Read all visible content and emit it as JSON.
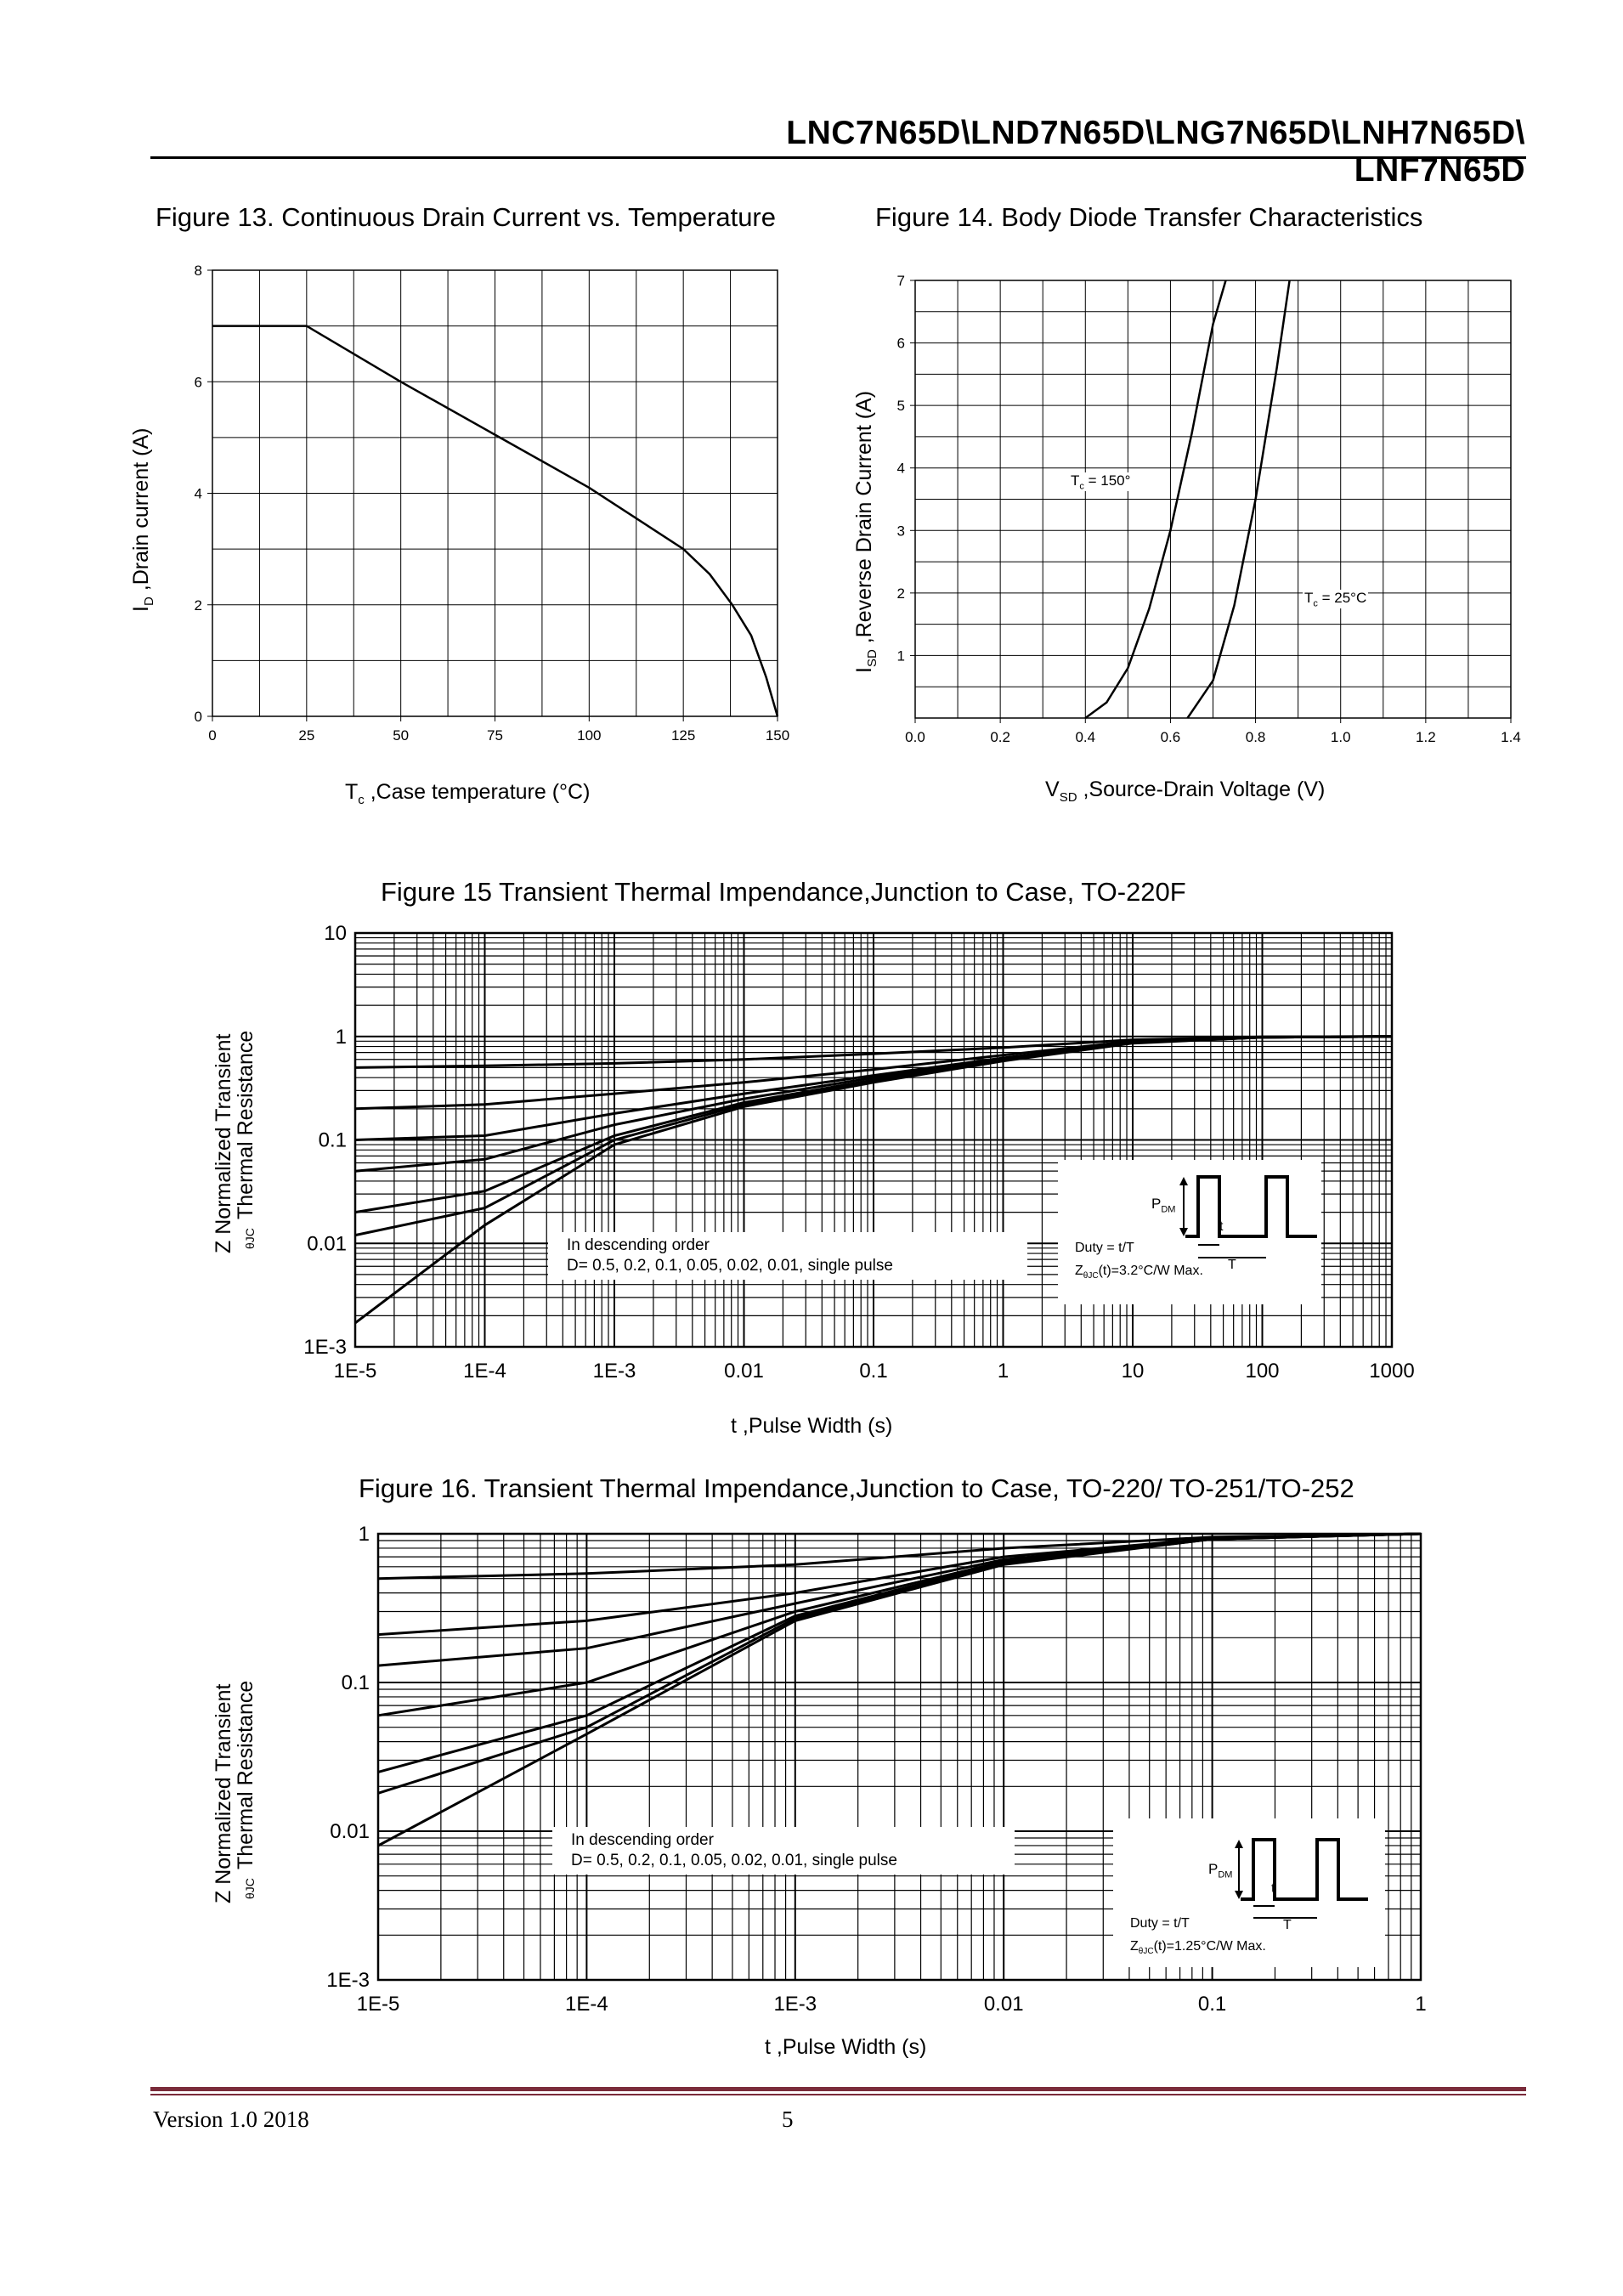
{
  "header": {
    "title": "LNC7N65D\\LND7N65D\\LNG7N65D\\LNH7N65D\\ LNF7N65D"
  },
  "footer": {
    "version": "Version 1.0    2018",
    "page": "5"
  },
  "figures": {
    "fig13": {
      "title": "Figure 13. Continuous Drain Current vs. Temperature",
      "ylabel_main": "I",
      "ylabel_sub": "D",
      "ylabel_rest": " ,Drain current (A)",
      "xlabel_main": "T",
      "xlabel_sub": "c",
      "xlabel_rest": " ,Case temperature (°C)"
    },
    "fig14": {
      "title": "Figure 14. Body Diode Transfer Characteristics",
      "ylabel_main": "I",
      "ylabel_sub": "SD",
      "ylabel_rest": " ,Reverse Drain Current  (A)",
      "xlabel_main": "V",
      "xlabel_sub": "SD",
      "xlabel_rest": " ,Source-Drain Voltage (V)",
      "ann_150_main": "T",
      "ann_150_sub": "c",
      "ann_150_rest": " = 150°",
      "ann_25_main": "T",
      "ann_25_sub": "c",
      "ann_25_rest": " = 25°C"
    },
    "fig15": {
      "title": "Figure 15 Transient Thermal Impendance,Junction to Case, TO-220F",
      "ylabel_line1": "Z    Normalized Transient",
      "ylabel_sub": "θJC",
      "ylabel_line2": "Thermal Resistance",
      "xlabel": "t ,Pulse Width (s)",
      "legend_line1": "In descending order",
      "legend_line2": "D= 0.5, 0.2, 0.1, 0.05, 0.02, 0.01, single pulse",
      "inset_pdm_main": "P",
      "inset_pdm_sub": "DM",
      "inset_t": "t",
      "inset_T": "T",
      "inset_duty": "Duty = t/T",
      "inset_z_main": "Z",
      "inset_z_sub": "θJC",
      "inset_z_rest": "(t)=3.2°C/W Max."
    },
    "fig16": {
      "title": "Figure 16. Transient Thermal Impendance,Junction to Case, TO-220/ TO-251/TO-252",
      "ylabel_line1": "Z    Normalized Transient",
      "ylabel_sub": "θJC",
      "ylabel_line2": "Thermal Resistance",
      "xlabel": "t ,Pulse Width (s)",
      "legend_line1": "In descending order",
      "legend_line2": "D= 0.5, 0.2, 0.1, 0.05, 0.02, 0.01, single pulse",
      "inset_pdm_main": "P",
      "inset_pdm_sub": "DM",
      "inset_t": "t",
      "inset_T": "T",
      "inset_duty": "Duty = t/T",
      "inset_z_main": "Z",
      "inset_z_sub": "θJC",
      "inset_z_rest": "(t)=1.25°C/W Max."
    }
  },
  "chart_data": [
    {
      "id": "fig13",
      "type": "line",
      "title": "Figure 13. Continuous Drain Current vs. Temperature",
      "xlabel": "Tc ,Case temperature (°C)",
      "ylabel": "ID ,Drain current (A)",
      "xlim": [
        0,
        150
      ],
      "ylim": [
        0,
        8
      ],
      "grid": true,
      "xticks": [
        0,
        25,
        50,
        75,
        100,
        125,
        150
      ],
      "xtick_labels": [
        "0",
        "25",
        "50",
        "75",
        "100",
        "125",
        "150"
      ],
      "yticks": [
        0,
        2,
        4,
        6,
        8
      ],
      "ytick_labels": [
        "0",
        "2",
        "4",
        "6",
        "8"
      ],
      "series": [
        {
          "name": "ID",
          "x": [
            0,
            25,
            50,
            75,
            100,
            125,
            132,
            138,
            143,
            147,
            150
          ],
          "y": [
            7,
            7,
            6.0,
            5.05,
            4.1,
            3.0,
            2.55,
            2.0,
            1.45,
            0.7,
            0
          ]
        }
      ]
    },
    {
      "id": "fig14",
      "type": "line",
      "title": "Figure 14. Body Diode Transfer Characteristics",
      "xlabel": "VSD ,Source-Drain Voltage (V)",
      "ylabel": "ISD ,Reverse Drain Current (A)",
      "xlim": [
        0,
        1.4
      ],
      "ylim": [
        0,
        7
      ],
      "grid": true,
      "xticks": [
        0,
        0.2,
        0.4,
        0.6,
        0.8,
        1.0,
        1.2,
        1.4
      ],
      "xtick_labels": [
        "0.0",
        "0.2",
        "0.4",
        "0.6",
        "0.8",
        "1.0",
        "1.2",
        "1.4"
      ],
      "yticks": [
        1,
        2,
        3,
        4,
        5,
        6,
        7
      ],
      "ytick_labels": [
        "1",
        "2",
        "3",
        "4",
        "5",
        "6",
        "7"
      ],
      "series": [
        {
          "name": "Tc = 150°",
          "x": [
            0.4,
            0.45,
            0.5,
            0.55,
            0.6,
            0.65,
            0.7,
            0.73
          ],
          "y": [
            0.0,
            0.25,
            0.8,
            1.75,
            3.0,
            4.55,
            6.3,
            7.0
          ]
        },
        {
          "name": "Tc = 25°C",
          "x": [
            0.64,
            0.7,
            0.75,
            0.8,
            0.85,
            0.88
          ],
          "y": [
            0.0,
            0.6,
            1.8,
            3.5,
            5.6,
            7.0
          ]
        }
      ]
    },
    {
      "id": "fig15",
      "type": "line",
      "xscale": "log",
      "yscale": "log",
      "title": "Figure 15 Transient Thermal Impendance,Junction to Case, TO-220F",
      "xlabel": "t ,Pulse Width (s)",
      "ylabel": "ZθJC Normalized Transient Thermal Resistance",
      "xlim": [
        1e-05,
        1000
      ],
      "ylim": [
        0.001,
        10
      ],
      "grid": true,
      "xtick_labels": [
        "1E-5",
        "1E-4",
        "1E-3",
        "0.01",
        "0.1",
        "1",
        "10",
        "100",
        "1000"
      ],
      "ytick_labels": [
        "1E-3",
        "0.01",
        "0.1",
        "1",
        "10"
      ],
      "series": [
        {
          "name": "D=0.5",
          "x": [
            1e-05,
            0.0001,
            0.001,
            0.01,
            0.1,
            1,
            10,
            100,
            1000
          ],
          "y": [
            0.5,
            0.52,
            0.55,
            0.6,
            0.68,
            0.78,
            0.93,
            0.99,
            1.0
          ]
        },
        {
          "name": "D=0.2",
          "x": [
            1e-05,
            0.0001,
            0.001,
            0.01,
            0.1,
            1,
            10,
            100,
            1000
          ],
          "y": [
            0.2,
            0.22,
            0.28,
            0.36,
            0.48,
            0.66,
            0.9,
            0.99,
            1.0
          ]
        },
        {
          "name": "D=0.1",
          "x": [
            1e-05,
            0.0001,
            0.001,
            0.01,
            0.1,
            1,
            10,
            100,
            1000
          ],
          "y": [
            0.1,
            0.11,
            0.18,
            0.28,
            0.42,
            0.62,
            0.88,
            0.98,
            1.0
          ]
        },
        {
          "name": "D=0.05",
          "x": [
            1e-05,
            0.0001,
            0.001,
            0.01,
            0.1,
            1,
            10,
            100,
            1000
          ],
          "y": [
            0.05,
            0.065,
            0.14,
            0.25,
            0.4,
            0.6,
            0.88,
            0.98,
            1.0
          ]
        },
        {
          "name": "D=0.02",
          "x": [
            1e-05,
            0.0001,
            0.001,
            0.01,
            0.1,
            1,
            10,
            100,
            1000
          ],
          "y": [
            0.02,
            0.032,
            0.11,
            0.23,
            0.38,
            0.6,
            0.87,
            0.98,
            1.0
          ]
        },
        {
          "name": "D=0.01",
          "x": [
            1e-05,
            0.0001,
            0.001,
            0.01,
            0.1,
            1,
            10,
            100,
            1000
          ],
          "y": [
            0.012,
            0.022,
            0.1,
            0.22,
            0.37,
            0.59,
            0.87,
            0.98,
            1.0
          ]
        },
        {
          "name": "single pulse",
          "x": [
            1e-05,
            0.0001,
            0.001,
            0.01,
            0.1,
            1,
            10,
            100,
            1000
          ],
          "y": [
            0.0017,
            0.015,
            0.09,
            0.21,
            0.36,
            0.58,
            0.86,
            0.98,
            1.0
          ]
        }
      ]
    },
    {
      "id": "fig16",
      "type": "line",
      "xscale": "log",
      "yscale": "log",
      "title": "Figure 16. Transient Thermal Impendance,Junction to Case, TO-220/ TO-251/TO-252",
      "xlabel": "t ,Pulse Width (s)",
      "ylabel": "ZθJC Normalized Transient Thermal Resistance",
      "xlim": [
        1e-05,
        1
      ],
      "ylim": [
        0.001,
        1
      ],
      "grid": true,
      "xtick_labels": [
        "1E-5",
        "1E-4",
        "1E-3",
        "0.01",
        "0.1",
        "1"
      ],
      "ytick_labels": [
        "1E-3",
        "0.01",
        "0.1",
        "1"
      ],
      "series": [
        {
          "name": "D=0.5",
          "x": [
            1e-05,
            0.0001,
            0.001,
            0.01,
            0.1,
            1
          ],
          "y": [
            0.5,
            0.54,
            0.62,
            0.8,
            0.95,
            1.0
          ]
        },
        {
          "name": "D=0.2",
          "x": [
            1e-05,
            0.0001,
            0.001,
            0.01,
            0.1,
            1
          ],
          "y": [
            0.21,
            0.26,
            0.4,
            0.7,
            0.93,
            1.0
          ]
        },
        {
          "name": "D=0.1",
          "x": [
            1e-05,
            0.0001,
            0.001,
            0.01,
            0.1,
            1
          ],
          "y": [
            0.13,
            0.17,
            0.34,
            0.67,
            0.93,
            1.0
          ]
        },
        {
          "name": "D=0.05",
          "x": [
            1e-05,
            0.0001,
            0.001,
            0.01,
            0.1,
            1
          ],
          "y": [
            0.06,
            0.1,
            0.3,
            0.65,
            0.92,
            1.0
          ]
        },
        {
          "name": "D=0.02",
          "x": [
            1e-05,
            0.0001,
            0.001,
            0.01,
            0.1,
            1
          ],
          "y": [
            0.025,
            0.06,
            0.28,
            0.64,
            0.92,
            1.0
          ]
        },
        {
          "name": "D=0.01",
          "x": [
            1e-05,
            0.0001,
            0.001,
            0.01,
            0.1,
            1
          ],
          "y": [
            0.018,
            0.05,
            0.27,
            0.63,
            0.92,
            1.0
          ]
        },
        {
          "name": "single pulse",
          "x": [
            1e-05,
            0.0001,
            0.001,
            0.01,
            0.1,
            1
          ],
          "y": [
            0.008,
            0.045,
            0.26,
            0.62,
            0.92,
            1.0
          ]
        }
      ]
    }
  ]
}
